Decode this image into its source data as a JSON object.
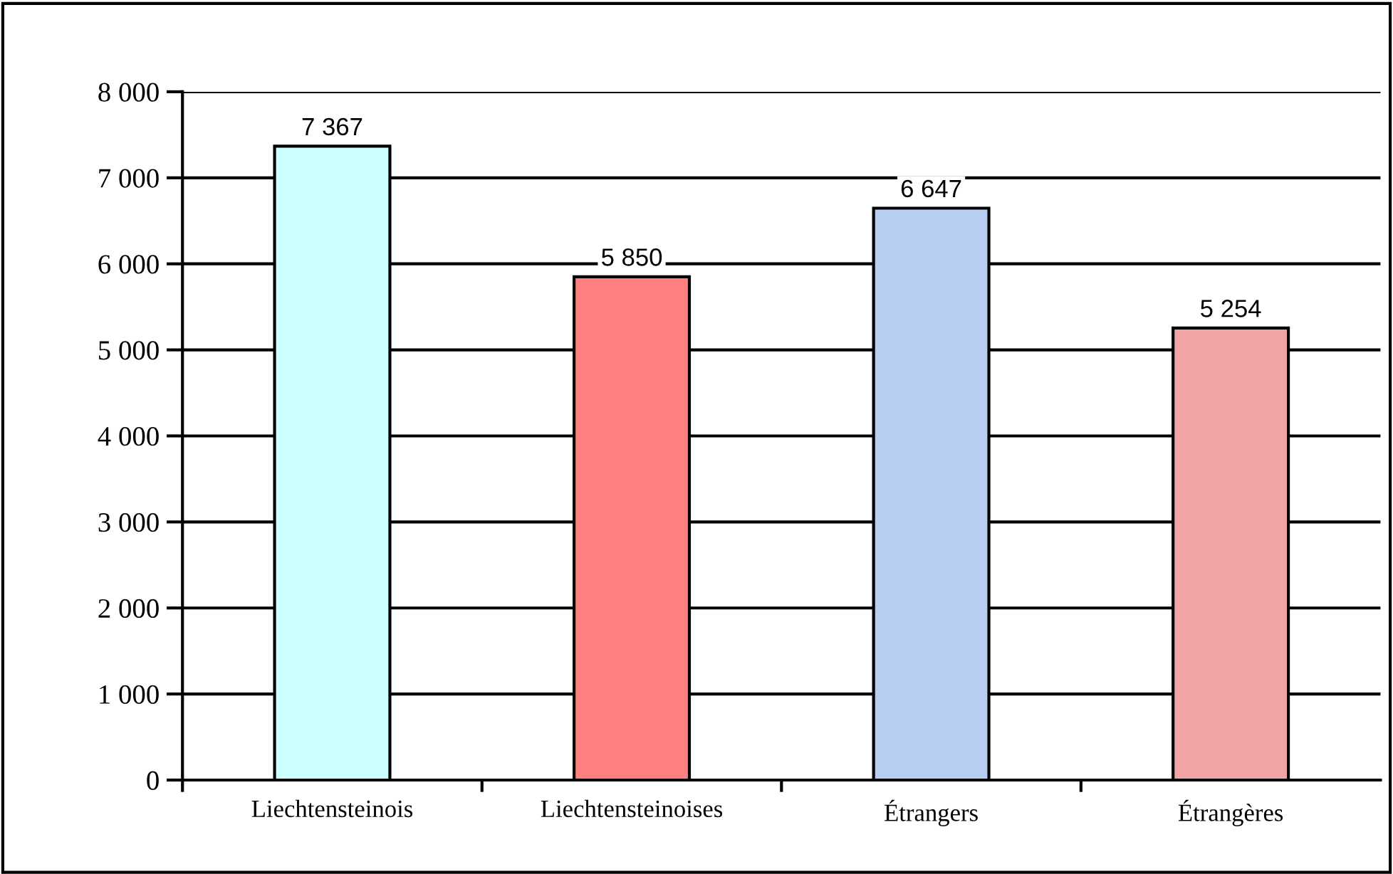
{
  "chart_data": {
    "type": "bar",
    "categories": [
      "Liechtensteinois",
      "Liechtensteinoises",
      "Étrangers",
      "Étrangères"
    ],
    "values": [
      7367,
      5850,
      6647,
      5254
    ],
    "value_labels": [
      "7 367",
      "5 850",
      "6 647",
      "5 254"
    ],
    "colors": [
      "#ccffff",
      "#ff8080",
      "#b8cdf2",
      "#f2a4a4"
    ],
    "ylim": [
      0,
      8000
    ],
    "yticks": [
      {
        "value": 0,
        "label": "0"
      },
      {
        "value": 1000,
        "label": "1 000"
      },
      {
        "value": 2000,
        "label": "2 000"
      },
      {
        "value": 3000,
        "label": "3 000"
      },
      {
        "value": 4000,
        "label": "4 000"
      },
      {
        "value": 5000,
        "label": "5 000"
      },
      {
        "value": 6000,
        "label": "6 000"
      },
      {
        "value": 7000,
        "label": "7 000"
      },
      {
        "value": 8000,
        "label": "8 000"
      }
    ],
    "grid": "y",
    "legend": false
  }
}
